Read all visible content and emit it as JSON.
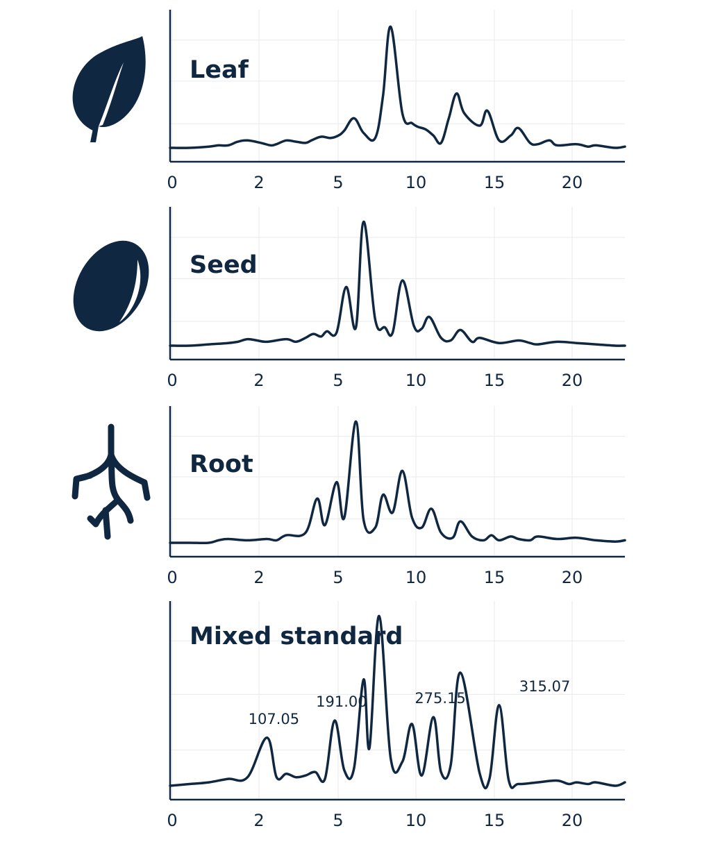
{
  "colors": {
    "ink": "#0f2741",
    "grid": "#e8eaec",
    "background": "#ffffff"
  },
  "chart_data": [
    {
      "type": "line",
      "title": "Leaf",
      "icon": "leaf-icon",
      "xlabel": "",
      "ylabel": "",
      "xlim": [
        0,
        23.5
      ],
      "ylim": [
        0,
        1
      ],
      "grid": true,
      "xticks": [
        0,
        2,
        5,
        10,
        15,
        20
      ],
      "x": [
        0.0,
        1.0,
        2.0,
        2.5,
        3.0,
        3.5,
        4.0,
        4.7,
        5.2,
        5.5,
        6.0,
        6.5,
        7.0,
        7.3,
        7.8,
        8.3,
        8.7,
        9.0,
        9.5,
        10.0,
        10.6,
        11.0,
        11.4,
        12.0,
        12.5,
        12.8,
        13.2,
        13.6,
        14.0,
        14.4,
        14.8,
        15.2,
        16.0,
        16.4,
        17.0,
        17.6,
        18.0,
        18.6,
        19.0,
        19.6,
        20.0,
        21.0,
        21.6,
        22.0,
        23.0,
        23.5
      ],
      "y": [
        0.0,
        0.0,
        0.01,
        0.02,
        0.02,
        0.05,
        0.06,
        0.04,
        0.02,
        0.03,
        0.06,
        0.05,
        0.04,
        0.06,
        0.09,
        0.08,
        0.1,
        0.14,
        0.24,
        0.12,
        0.08,
        0.42,
        0.98,
        0.28,
        0.2,
        0.17,
        0.15,
        0.1,
        0.04,
        0.24,
        0.44,
        0.28,
        0.18,
        0.3,
        0.06,
        0.1,
        0.16,
        0.04,
        0.03,
        0.06,
        0.02,
        0.03,
        0.01,
        0.02,
        0.0,
        0.01
      ]
    },
    {
      "type": "line",
      "title": "Seed",
      "icon": "seed-icon",
      "xlabel": "",
      "ylabel": "",
      "xlim": [
        0,
        23.5
      ],
      "ylim": [
        0,
        1
      ],
      "grid": true,
      "xticks": [
        0,
        2,
        5,
        10,
        15,
        20
      ],
      "x": [
        0.0,
        1.0,
        2.0,
        3.0,
        3.5,
        4.0,
        4.5,
        5.0,
        6.0,
        6.5,
        7.0,
        7.4,
        7.8,
        8.1,
        8.6,
        9.1,
        9.6,
        10.0,
        10.6,
        11.1,
        11.5,
        12.0,
        12.6,
        13.0,
        13.4,
        14.0,
        14.5,
        15.0,
        15.6,
        16.0,
        17.0,
        18.0,
        18.6,
        19.0,
        20.0,
        21.0,
        22.0,
        23.0,
        23.5
      ],
      "y": [
        0.0,
        0.0,
        0.01,
        0.02,
        0.03,
        0.05,
        0.04,
        0.03,
        0.05,
        0.03,
        0.06,
        0.09,
        0.07,
        0.11,
        0.1,
        0.45,
        0.14,
        0.95,
        0.2,
        0.14,
        0.1,
        0.5,
        0.15,
        0.13,
        0.22,
        0.06,
        0.04,
        0.12,
        0.03,
        0.06,
        0.02,
        0.04,
        0.02,
        0.01,
        0.03,
        0.02,
        0.01,
        0.0,
        0.0
      ]
    },
    {
      "type": "line",
      "title": "Root",
      "icon": "root-icon",
      "xlabel": "",
      "ylabel": "",
      "xlim": [
        0,
        23.5
      ],
      "ylim": [
        0,
        1
      ],
      "grid": true,
      "xticks": [
        0,
        2,
        5,
        10,
        15,
        20
      ],
      "x": [
        0.0,
        1.0,
        2.0,
        2.5,
        3.0,
        4.0,
        5.0,
        5.5,
        6.0,
        7.0,
        7.6,
        8.0,
        8.6,
        9.0,
        9.6,
        10.0,
        10.6,
        11.0,
        11.5,
        12.0,
        12.5,
        13.0,
        13.5,
        14.0,
        14.6,
        15.0,
        15.6,
        16.2,
        16.6,
        17.0,
        17.6,
        18.0,
        18.6,
        19.0,
        20.0,
        21.0,
        22.0,
        23.0,
        23.5
      ],
      "y": [
        0.0,
        0.0,
        0.0,
        0.02,
        0.03,
        0.02,
        0.03,
        0.02,
        0.06,
        0.08,
        0.35,
        0.14,
        0.48,
        0.2,
        0.96,
        0.18,
        0.12,
        0.38,
        0.24,
        0.57,
        0.2,
        0.12,
        0.27,
        0.08,
        0.04,
        0.17,
        0.05,
        0.02,
        0.06,
        0.02,
        0.05,
        0.03,
        0.02,
        0.05,
        0.03,
        0.04,
        0.02,
        0.01,
        0.02
      ]
    },
    {
      "type": "line",
      "title": "Mixed standard",
      "icon": "",
      "xlabel": "",
      "ylabel": "",
      "xlim": [
        0,
        23.5
      ],
      "ylim": [
        0,
        1
      ],
      "grid": true,
      "xticks": [
        0,
        2,
        5,
        10,
        15,
        20
      ],
      "x": [
        0.0,
        1.0,
        2.0,
        3.0,
        4.0,
        5.0,
        5.5,
        6.0,
        6.5,
        7.0,
        7.5,
        8.0,
        8.5,
        9.0,
        9.5,
        10.0,
        10.3,
        10.8,
        11.4,
        12.0,
        12.5,
        13.0,
        13.6,
        14.0,
        14.5,
        15.0,
        16.0,
        16.5,
        17.0,
        17.5,
        18.0,
        19.0,
        20.0,
        20.6,
        21.0,
        21.6,
        22.0,
        23.0,
        23.5
      ],
      "y": [
        0.0,
        0.01,
        0.02,
        0.04,
        0.05,
        0.28,
        0.05,
        0.07,
        0.05,
        0.06,
        0.08,
        0.04,
        0.38,
        0.09,
        0.1,
        0.62,
        0.22,
        0.99,
        0.16,
        0.14,
        0.36,
        0.06,
        0.4,
        0.08,
        0.12,
        0.66,
        0.07,
        0.04,
        0.47,
        0.03,
        0.01,
        0.02,
        0.03,
        0.01,
        0.02,
        0.01,
        0.02,
        0.0,
        0.02
      ],
      "annotations": [
        {
          "text": "107.05",
          "x": 5.0,
          "y": 0.28
        },
        {
          "text": "191.00",
          "x": 8.5,
          "y": 0.38
        },
        {
          "text": "275.15",
          "x": 13.6,
          "y": 0.4
        },
        {
          "text": "315.07",
          "x": 19.0,
          "y": 0.47
        }
      ]
    }
  ]
}
